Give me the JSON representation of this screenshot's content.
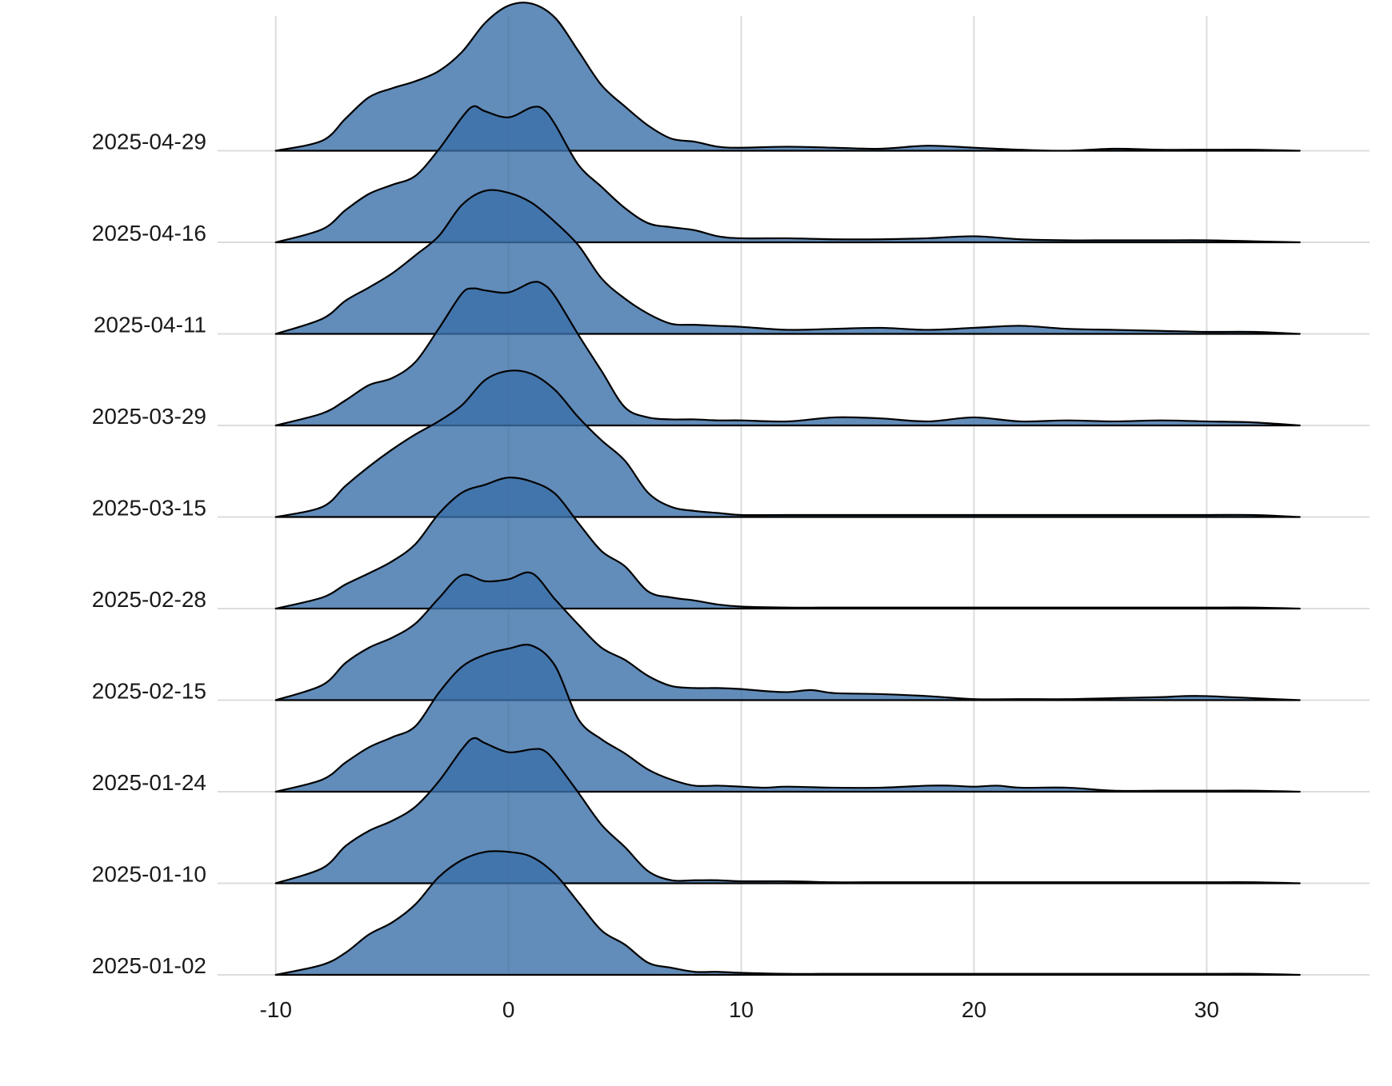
{
  "chart_data": {
    "type": "area",
    "subtype": "ridgeline-density",
    "title": "",
    "xlabel": "",
    "ylabel": "",
    "grid": true,
    "legend": "none",
    "fill_color": "#3B6FA8",
    "line_color": "#000000",
    "grid_color": "#DCDCDC",
    "xlim": [
      -12.5,
      37
    ],
    "x_ticks": [
      -10,
      0,
      10,
      20,
      30
    ],
    "x_tick_labels": [
      "-10",
      "0",
      "10",
      "20",
      "30"
    ],
    "x_range_of_curves": [
      -10,
      34
    ],
    "categories": [
      "2025-01-02",
      "2025-01-10",
      "2025-01-24",
      "2025-02-15",
      "2025-02-28",
      "2025-03-15",
      "2025-03-29",
      "2025-04-11",
      "2025-04-16",
      "2025-04-29"
    ],
    "series": [
      {
        "category": "2025-01-02",
        "x": [
          -10,
          -8,
          -7,
          -6,
          -5,
          -4,
          -3,
          -2,
          -1,
          0,
          1,
          2,
          3,
          4,
          5,
          6,
          7,
          8,
          9,
          10,
          12,
          14,
          16,
          18,
          20,
          22,
          24,
          26,
          28,
          30,
          32,
          34
        ],
        "density": [
          0,
          0.1,
          0.22,
          0.4,
          0.52,
          0.7,
          0.97,
          1.14,
          1.22,
          1.22,
          1.17,
          1.0,
          0.72,
          0.44,
          0.3,
          0.12,
          0.07,
          0.03,
          0.03,
          0.02,
          0.01,
          0.01,
          0.01,
          0.01,
          0.01,
          0.01,
          0.01,
          0.01,
          0.01,
          0.01,
          0.01,
          0
        ]
      },
      {
        "category": "2025-01-10",
        "x": [
          -10,
          -8,
          -7,
          -6,
          -5,
          -4,
          -3,
          -2,
          -1.5,
          -1,
          0,
          1,
          1.5,
          2,
          3,
          4,
          5,
          6,
          7,
          8,
          9,
          10,
          12,
          14,
          16,
          18,
          20,
          22,
          24,
          26,
          28,
          30,
          32,
          34
        ],
        "density": [
          0,
          0.15,
          0.37,
          0.52,
          0.62,
          0.76,
          1.01,
          1.33,
          1.44,
          1.39,
          1.3,
          1.33,
          1.32,
          1.21,
          0.9,
          0.58,
          0.36,
          0.12,
          0.03,
          0.03,
          0.03,
          0.02,
          0.02,
          0.01,
          0.01,
          0.01,
          0.01,
          0.01,
          0.01,
          0.01,
          0.01,
          0.01,
          0.01,
          0
        ]
      },
      {
        "category": "2025-01-24",
        "x": [
          -10,
          -8,
          -7,
          -6,
          -5,
          -4,
          -3,
          -2,
          -1,
          0,
          1,
          2,
          3,
          4,
          5,
          6,
          7,
          8,
          9,
          10,
          11,
          12,
          14,
          16,
          18,
          19,
          20,
          21,
          22,
          24,
          26,
          28,
          30,
          32,
          34
        ],
        "density": [
          0,
          0.12,
          0.29,
          0.44,
          0.54,
          0.65,
          0.98,
          1.24,
          1.36,
          1.42,
          1.45,
          1.25,
          0.72,
          0.52,
          0.38,
          0.22,
          0.12,
          0.06,
          0.06,
          0.05,
          0.04,
          0.05,
          0.04,
          0.04,
          0.06,
          0.06,
          0.05,
          0.06,
          0.04,
          0.04,
          0.01,
          0.01,
          0.01,
          0.01,
          0
        ]
      },
      {
        "category": "2025-02-15",
        "x": [
          -10,
          -8,
          -7,
          -6,
          -5,
          -4,
          -3,
          -2,
          -1,
          0,
          1,
          2,
          3,
          4,
          5,
          6,
          7,
          8,
          9,
          10,
          11,
          12,
          13,
          14,
          16,
          18,
          20,
          22,
          24,
          26,
          28,
          29,
          30,
          32,
          34
        ],
        "density": [
          0,
          0.15,
          0.37,
          0.52,
          0.62,
          0.76,
          1.01,
          1.24,
          1.18,
          1.2,
          1.26,
          1.0,
          0.75,
          0.52,
          0.4,
          0.24,
          0.14,
          0.12,
          0.12,
          0.11,
          0.09,
          0.08,
          0.1,
          0.07,
          0.06,
          0.04,
          0.01,
          0.01,
          0.01,
          0.02,
          0.03,
          0.04,
          0.04,
          0.02,
          0
        ]
      },
      {
        "category": "2025-02-28",
        "x": [
          -10,
          -8,
          -7,
          -6,
          -5,
          -4,
          -3,
          -2,
          -1,
          0,
          1,
          2,
          3,
          4,
          5,
          6,
          7,
          8,
          9,
          10,
          12,
          14,
          16,
          18,
          20,
          22,
          24,
          26,
          28,
          30,
          32,
          34
        ],
        "density": [
          0,
          0.11,
          0.24,
          0.35,
          0.47,
          0.64,
          0.94,
          1.15,
          1.23,
          1.3,
          1.26,
          1.14,
          0.85,
          0.57,
          0.42,
          0.17,
          0.11,
          0.08,
          0.04,
          0.02,
          0.01,
          0.01,
          0.01,
          0.01,
          0.01,
          0.01,
          0.01,
          0.01,
          0.01,
          0.01,
          0.01,
          0
        ]
      },
      {
        "category": "2025-03-15",
        "x": [
          -10,
          -8,
          -7,
          -6,
          -5,
          -4,
          -3,
          -2,
          -1,
          0,
          1,
          2,
          3,
          4,
          5,
          6,
          7,
          8,
          9,
          10,
          12,
          14,
          16,
          18,
          20,
          22,
          24,
          26,
          28,
          30,
          32,
          34
        ],
        "density": [
          0,
          0.1,
          0.31,
          0.5,
          0.67,
          0.82,
          0.95,
          1.11,
          1.36,
          1.45,
          1.42,
          1.26,
          0.99,
          0.76,
          0.56,
          0.24,
          0.1,
          0.06,
          0.04,
          0.02,
          0.02,
          0.02,
          0.02,
          0.02,
          0.02,
          0.02,
          0.02,
          0.02,
          0.02,
          0.02,
          0.02,
          0
        ]
      },
      {
        "category": "2025-03-29",
        "x": [
          -10,
          -8,
          -7,
          -6,
          -5,
          -4,
          -3,
          -2,
          -1.5,
          -1,
          0,
          1,
          1.5,
          2,
          3,
          4,
          5,
          6,
          7,
          8,
          9,
          10,
          12,
          14,
          16,
          18,
          20,
          22,
          24,
          26,
          28,
          30,
          32,
          34
        ],
        "density": [
          0,
          0.12,
          0.25,
          0.4,
          0.47,
          0.63,
          0.96,
          1.31,
          1.36,
          1.34,
          1.32,
          1.42,
          1.4,
          1.28,
          0.9,
          0.54,
          0.18,
          0.08,
          0.06,
          0.06,
          0.05,
          0.05,
          0.04,
          0.08,
          0.07,
          0.04,
          0.08,
          0.04,
          0.05,
          0.04,
          0.05,
          0.04,
          0.03,
          0
        ]
      },
      {
        "category": "2025-04-11",
        "x": [
          -10,
          -8,
          -7,
          -6,
          -5,
          -4,
          -3,
          -2,
          -1,
          0,
          1,
          2,
          3,
          4,
          5,
          6,
          7,
          8,
          9,
          10,
          12,
          14,
          16,
          18,
          20,
          22,
          24,
          26,
          28,
          30,
          32,
          34
        ],
        "density": [
          0,
          0.15,
          0.33,
          0.46,
          0.6,
          0.78,
          0.97,
          1.28,
          1.42,
          1.4,
          1.3,
          1.11,
          0.88,
          0.55,
          0.35,
          0.2,
          0.1,
          0.09,
          0.08,
          0.07,
          0.04,
          0.05,
          0.06,
          0.04,
          0.06,
          0.08,
          0.05,
          0.04,
          0.03,
          0.02,
          0.02,
          0
        ]
      },
      {
        "category": "2025-04-16",
        "x": [
          -10,
          -8,
          -7,
          -6,
          -5,
          -4,
          -3,
          -2,
          -1.5,
          -1,
          0,
          1,
          1.5,
          2,
          3,
          4,
          5,
          6,
          7,
          8,
          9,
          10,
          12,
          14,
          16,
          18,
          20,
          22,
          24,
          26,
          28,
          30,
          32,
          34
        ],
        "density": [
          0,
          0.13,
          0.32,
          0.48,
          0.57,
          0.66,
          0.92,
          1.24,
          1.35,
          1.3,
          1.24,
          1.34,
          1.32,
          1.17,
          0.77,
          0.55,
          0.34,
          0.19,
          0.15,
          0.12,
          0.06,
          0.04,
          0.04,
          0.03,
          0.03,
          0.04,
          0.06,
          0.03,
          0.02,
          0.02,
          0.02,
          0.02,
          0.01,
          0
        ]
      },
      {
        "category": "2025-04-29",
        "x": [
          -10,
          -8,
          -7,
          -6,
          -5,
          -4,
          -3,
          -2,
          -1,
          0,
          1,
          2,
          3,
          4,
          5,
          6,
          7,
          8,
          9,
          10,
          12,
          14,
          16,
          18,
          20,
          22,
          24,
          26,
          28,
          30,
          32,
          34
        ],
        "density": [
          0,
          0.1,
          0.32,
          0.53,
          0.62,
          0.69,
          0.79,
          0.98,
          1.27,
          1.44,
          1.46,
          1.32,
          0.99,
          0.65,
          0.44,
          0.25,
          0.12,
          0.09,
          0.04,
          0.03,
          0.04,
          0.03,
          0.02,
          0.05,
          0.03,
          0.01,
          0.0,
          0.02,
          0.01,
          0.01,
          0.01,
          0
        ]
      }
    ]
  }
}
